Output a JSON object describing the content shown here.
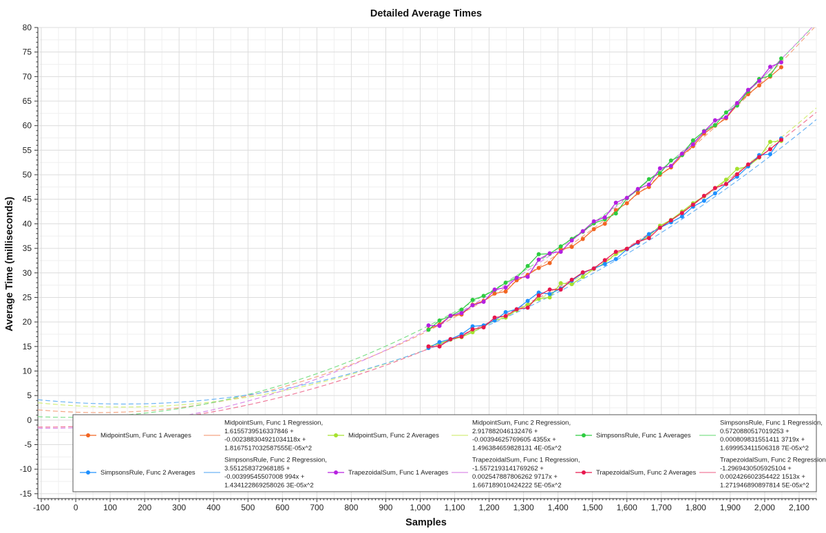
{
  "chart_data": {
    "type": "scatter",
    "title": "Detailed Average Times",
    "xlabel": "Samples",
    "ylabel": "Average Time (milliseconds)",
    "xlim": [
      -110,
      2150
    ],
    "ylim": [
      -16,
      80
    ],
    "x_ticks": [
      -100,
      0,
      100,
      200,
      300,
      400,
      500,
      600,
      700,
      800,
      900,
      1000,
      1100,
      1200,
      1300,
      1400,
      1500,
      1600,
      1700,
      1800,
      1900,
      2000,
      2100
    ],
    "x_tick_labels": [
      "-100",
      "0",
      "100",
      "200",
      "300",
      "400",
      "500",
      "600",
      "700",
      "800",
      "900",
      "1,000",
      "1,100",
      "1,200",
      "1,300",
      "1,400",
      "1,500",
      "1,600",
      "1,700",
      "1,800",
      "1,900",
      "2,000",
      "2,100"
    ],
    "y_ticks": [
      -15,
      -10,
      -5,
      0,
      5,
      10,
      15,
      20,
      25,
      30,
      35,
      40,
      45,
      50,
      55,
      60,
      65,
      70,
      75,
      80
    ],
    "y_tick_labels": [
      "-15",
      "-10",
      "-5",
      "0",
      "5",
      "10",
      "15",
      "20",
      "25",
      "30",
      "35",
      "40",
      "45",
      "50",
      "55",
      "60",
      "65",
      "70",
      "75",
      "80"
    ],
    "grid": true,
    "legend_position": "bottom",
    "sample_x": [
      1024,
      1056,
      1088,
      1120,
      1152,
      1184,
      1216,
      1248,
      1280,
      1312,
      1344,
      1376,
      1408,
      1440,
      1472,
      1504,
      1536,
      1568,
      1600,
      1632,
      1664,
      1696,
      1728,
      1760,
      1792,
      1824,
      1856,
      1888,
      1920,
      1952,
      1984,
      2016,
      2048
    ],
    "series": [
      {
        "name": "MidpointSum, Func 1 Averages",
        "color": "#f26522",
        "values": [
          18.5,
          19.5,
          21.2,
          21.5,
          23.5,
          24.3,
          25.8,
          26.2,
          28.5,
          29.6,
          31.0,
          32.0,
          34.8,
          35.3,
          36.9,
          38.9,
          40.0,
          42.8,
          44.2,
          46.3,
          47.5,
          50.0,
          51.5,
          54.0,
          55.8,
          58.4,
          60.0,
          61.5,
          64.3,
          66.4,
          68.2,
          70.0,
          71.9
        ]
      },
      {
        "name": "MidpointSum, Func 1 Regression,\n1.61557395163378 46 +\n-0.002388304921034118x +\n1.816751703258755 5E-05x^2",
        "legend_label": "MidpointSum, Func 1 Regression,\n1.6155739516337846 +\n-0.002388304921034118x +\n1.8167517032587555E-05x^2",
        "color": "#f4a582",
        "dashed": true,
        "coefficients": [
          1.6155739516337846,
          -0.002388304921034118,
          1.8167517032587555e-05
        ]
      },
      {
        "name": "MidpointSum, Func 2 Averages",
        "color": "#a6e22e",
        "values": [
          15.0,
          15.6,
          16.4,
          16.9,
          17.9,
          19.1,
          20.3,
          20.9,
          22.4,
          23.5,
          24.7,
          25.0,
          27.9,
          27.7,
          29.2,
          30.8,
          32.0,
          33.9,
          34.9,
          36.2,
          37.5,
          39.6,
          40.8,
          42.5,
          44.2,
          45.6,
          47.3,
          49.0,
          51.2,
          51.7,
          53.5,
          56.7,
          56.9
        ]
      },
      {
        "name": "MidpointSum, Func 2 Regression",
        "legend_label": "MidpointSum, Func 2 Regression,\n2.917882046132476 +\n-0.00394625769605 4355x +\n1.496384659828131 4E-05x^2",
        "color": "#d4ee7a",
        "dashed": true,
        "coefficients": [
          2.917882046132476,
          -0.003946257696054355,
          1.4963846598281314e-05
        ]
      },
      {
        "name": "SimpsonsRule, Func 1 Averages",
        "color": "#2ecc40",
        "values": [
          18.4,
          20.3,
          21.2,
          22.5,
          24.5,
          25.3,
          26.5,
          28.0,
          29.0,
          31.4,
          33.8,
          33.9,
          35.4,
          36.9,
          38.4,
          40.1,
          40.9,
          42.1,
          45.2,
          47.0,
          49.1,
          50.3,
          52.9,
          54.0,
          57.0,
          58.9,
          60.1,
          62.7,
          64.1,
          67.0,
          69.5,
          70.2,
          73.7
        ]
      },
      {
        "name": "SimpsonsRule, Func 1 Regression",
        "legend_label": "SimpsonsRule, Func 1 Regression,\n0.5720880517019253 +\n0.000809831551411 3719x +\n1.699953411506318 7E-05x^2",
        "color": "#7fe08a",
        "dashed": true,
        "coefficients": [
          0.5720880517019253,
          0.0008098315514113719,
          1.6999534115063187e-05
        ]
      },
      {
        "name": "SimpsonsRule, Func 2 Averages",
        "color": "#1e90ff",
        "values": [
          14.7,
          15.9,
          16.5,
          17.5,
          19.1,
          19.3,
          20.3,
          22.0,
          22.6,
          24.3,
          26.0,
          25.7,
          26.8,
          28.4,
          30.0,
          30.9,
          31.8,
          32.8,
          34.8,
          36.1,
          37.9,
          39.2,
          40.3,
          41.5,
          43.5,
          44.7,
          46.2,
          48.1,
          49.6,
          51.7,
          54.0,
          54.2,
          57.4
        ]
      },
      {
        "name": "SimpsonsRule, Func 2 Regression",
        "legend_label": "SimpsonsRule, Func 2 Regression,\n3.551258372968185 +\n-0.00399545507008 994x +\n1.434122869258026 3E-05x^2",
        "color": "#6cb4f5",
        "dashed": true,
        "coefficients": [
          3.551258372968185,
          -0.003995455070080994,
          1.4341228692580263e-05
        ]
      },
      {
        "name": "TrapezoidalSum, Func 1 Averages",
        "color": "#b620e0",
        "values": [
          19.3,
          19.2,
          21.3,
          21.8,
          23.4,
          24.1,
          26.6,
          27.0,
          29.0,
          29.2,
          32.7,
          34.0,
          34.3,
          36.6,
          38.5,
          40.5,
          41.3,
          44.3,
          45.3,
          47.1,
          48.0,
          51.3,
          51.8,
          54.3,
          56.2,
          58.8,
          61.1,
          61.7,
          64.6,
          67.3,
          69.1,
          72.0,
          72.9
        ]
      },
      {
        "name": "TrapezoidalSum, Func 1 Regression",
        "legend_label": "TrapezoidalSum, Func 1 Regression,\n-1.5572193141769262 +\n0.002547887806262 9717x +\n1.667189010424222 5E-05x^2",
        "color": "#d98ae8",
        "dashed": true,
        "coefficients": [
          -1.5572193141769262,
          0.0025478878062629717,
          1.6671890104242225e-05
        ]
      },
      {
        "name": "TrapezoidalSum, Func 2 Averages",
        "color": "#e8174d",
        "values": [
          15.0,
          15.0,
          16.5,
          17.0,
          18.5,
          18.9,
          20.9,
          21.2,
          22.6,
          22.9,
          25.4,
          26.6,
          26.6,
          28.6,
          30.1,
          30.9,
          32.6,
          34.3,
          34.9,
          36.3,
          37.1,
          39.2,
          40.7,
          42.2,
          43.9,
          45.7,
          47.3,
          48.1,
          50.1,
          52.1,
          53.6,
          55.2,
          57.1
        ]
      },
      {
        "name": "TrapezoidalSum, Func 2 Regression",
        "legend_label": "TrapezoidalSum, Func 2 Regression,\n-1.2969430505925104 +\n0.002426602354422 1513x +\n1.271946890897814 5E-05x^2",
        "color": "#f07a9a",
        "dashed": true,
        "coefficients": [
          -1.2969430505925104,
          0.0024266023544221513,
          1.2719468908978145e-05
        ]
      }
    ]
  }
}
